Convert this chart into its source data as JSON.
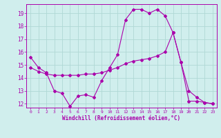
{
  "background_color": "#d0eeed",
  "grid_color": "#afd8d5",
  "line_color": "#aa00aa",
  "xlabel": "Windchill (Refroidissement éolien,°C)",
  "xlim": [
    -0.5,
    23.5
  ],
  "ylim": [
    11.7,
    19.7
  ],
  "yticks": [
    12,
    13,
    14,
    15,
    16,
    17,
    18,
    19
  ],
  "xticks": [
    0,
    1,
    2,
    3,
    4,
    5,
    6,
    7,
    8,
    9,
    10,
    11,
    12,
    13,
    14,
    15,
    16,
    17,
    18,
    19,
    20,
    21,
    22,
    23
  ],
  "series1_x": [
    0,
    1,
    2,
    3,
    4,
    5,
    6,
    7,
    8,
    9,
    10,
    11,
    12,
    13,
    14,
    15,
    16,
    17,
    18,
    19,
    20,
    21,
    22,
    23
  ],
  "series1_y": [
    15.6,
    14.8,
    14.4,
    13.0,
    12.8,
    11.8,
    12.6,
    12.7,
    12.5,
    13.8,
    14.8,
    15.8,
    18.5,
    19.3,
    19.3,
    19.0,
    19.3,
    18.8,
    17.5,
    15.2,
    13.0,
    12.5,
    12.1,
    12.0
  ],
  "series2_x": [
    0,
    1,
    2,
    3,
    4,
    5,
    6,
    7,
    8,
    9,
    10,
    11,
    12,
    13,
    14,
    15,
    16,
    17,
    18,
    19,
    20,
    21,
    22,
    23
  ],
  "series2_y": [
    14.8,
    14.5,
    14.3,
    14.2,
    14.2,
    14.2,
    14.2,
    14.3,
    14.3,
    14.4,
    14.6,
    14.8,
    15.1,
    15.3,
    15.4,
    15.5,
    15.7,
    16.0,
    17.5,
    15.2,
    12.2,
    12.2,
    12.1,
    12.0
  ]
}
